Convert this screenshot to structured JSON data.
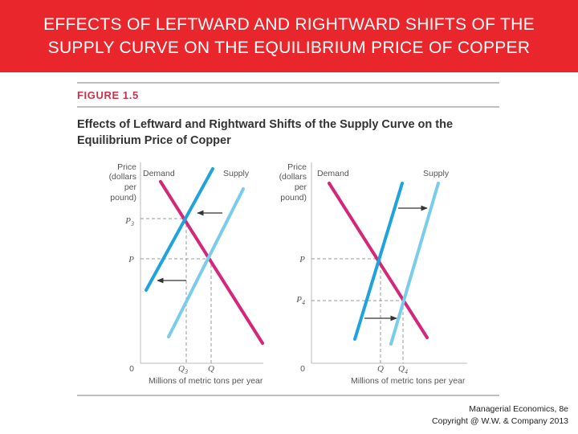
{
  "slide": {
    "title_line1": "EFFECTS OF LEFTWARD AND RIGHTWARD SHIFTS OF THE",
    "title_line2": "SUPPLY CURVE ON THE EQUILIBRIUM PRICE OF COPPER",
    "banner_color": "#e8262b"
  },
  "figure": {
    "label": "FIGURE 1.5",
    "title_line1": "Effects of Leftward and Rightward Shifts of the Supply Curve on the",
    "title_line2": "Equilibrium Price of Copper"
  },
  "left_panel": {
    "price_axis_label": [
      "Price",
      "(dollars",
      "per",
      "pound)"
    ],
    "demand_label": "Demand",
    "supply_label": "Supply",
    "price_ticks": [
      "P3",
      "P"
    ],
    "quantity_ticks": [
      "Q3",
      "Q"
    ],
    "origin": "0",
    "x_axis_label": "Millions of metric tons per year"
  },
  "right_panel": {
    "price_axis_label": [
      "Price",
      "(dollars",
      "per",
      "pound)"
    ],
    "demand_label": "Demand",
    "supply_label": "Supply",
    "price_ticks": [
      "P",
      "P4"
    ],
    "quantity_ticks": [
      "Q",
      "Q4"
    ],
    "origin": "0",
    "x_axis_label": "Millions of metric tons per year"
  },
  "colors": {
    "demand": "#d6267a",
    "supply_new": "#1ea3dc",
    "supply_old": "#79cdea",
    "dashed": "#999999"
  },
  "footer": {
    "line1": "Managerial Economics, 8e",
    "line2": "Copyright @ W.W. & Company 2013"
  }
}
